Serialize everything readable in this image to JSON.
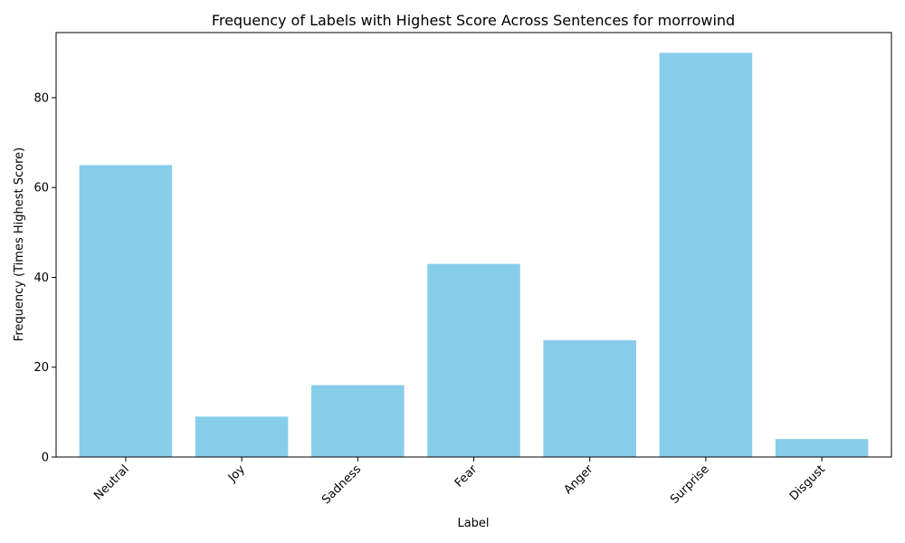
{
  "chart_data": {
    "type": "bar",
    "title": "Frequency of Labels with Highest Score Across Sentences for morrowind",
    "xlabel": "Label",
    "ylabel": "Frequency (Times Highest Score)",
    "categories": [
      "Neutral",
      "Joy",
      "Sadness",
      "Fear",
      "Anger",
      "Surprise",
      "Disgust"
    ],
    "values": [
      65,
      9,
      16,
      43,
      26,
      90,
      4
    ],
    "ylim": [
      0,
      94.5
    ],
    "yticks": [
      0,
      20,
      40,
      60,
      80
    ],
    "bar_color": "#87ceeb",
    "grid": false,
    "legend": "none"
  }
}
